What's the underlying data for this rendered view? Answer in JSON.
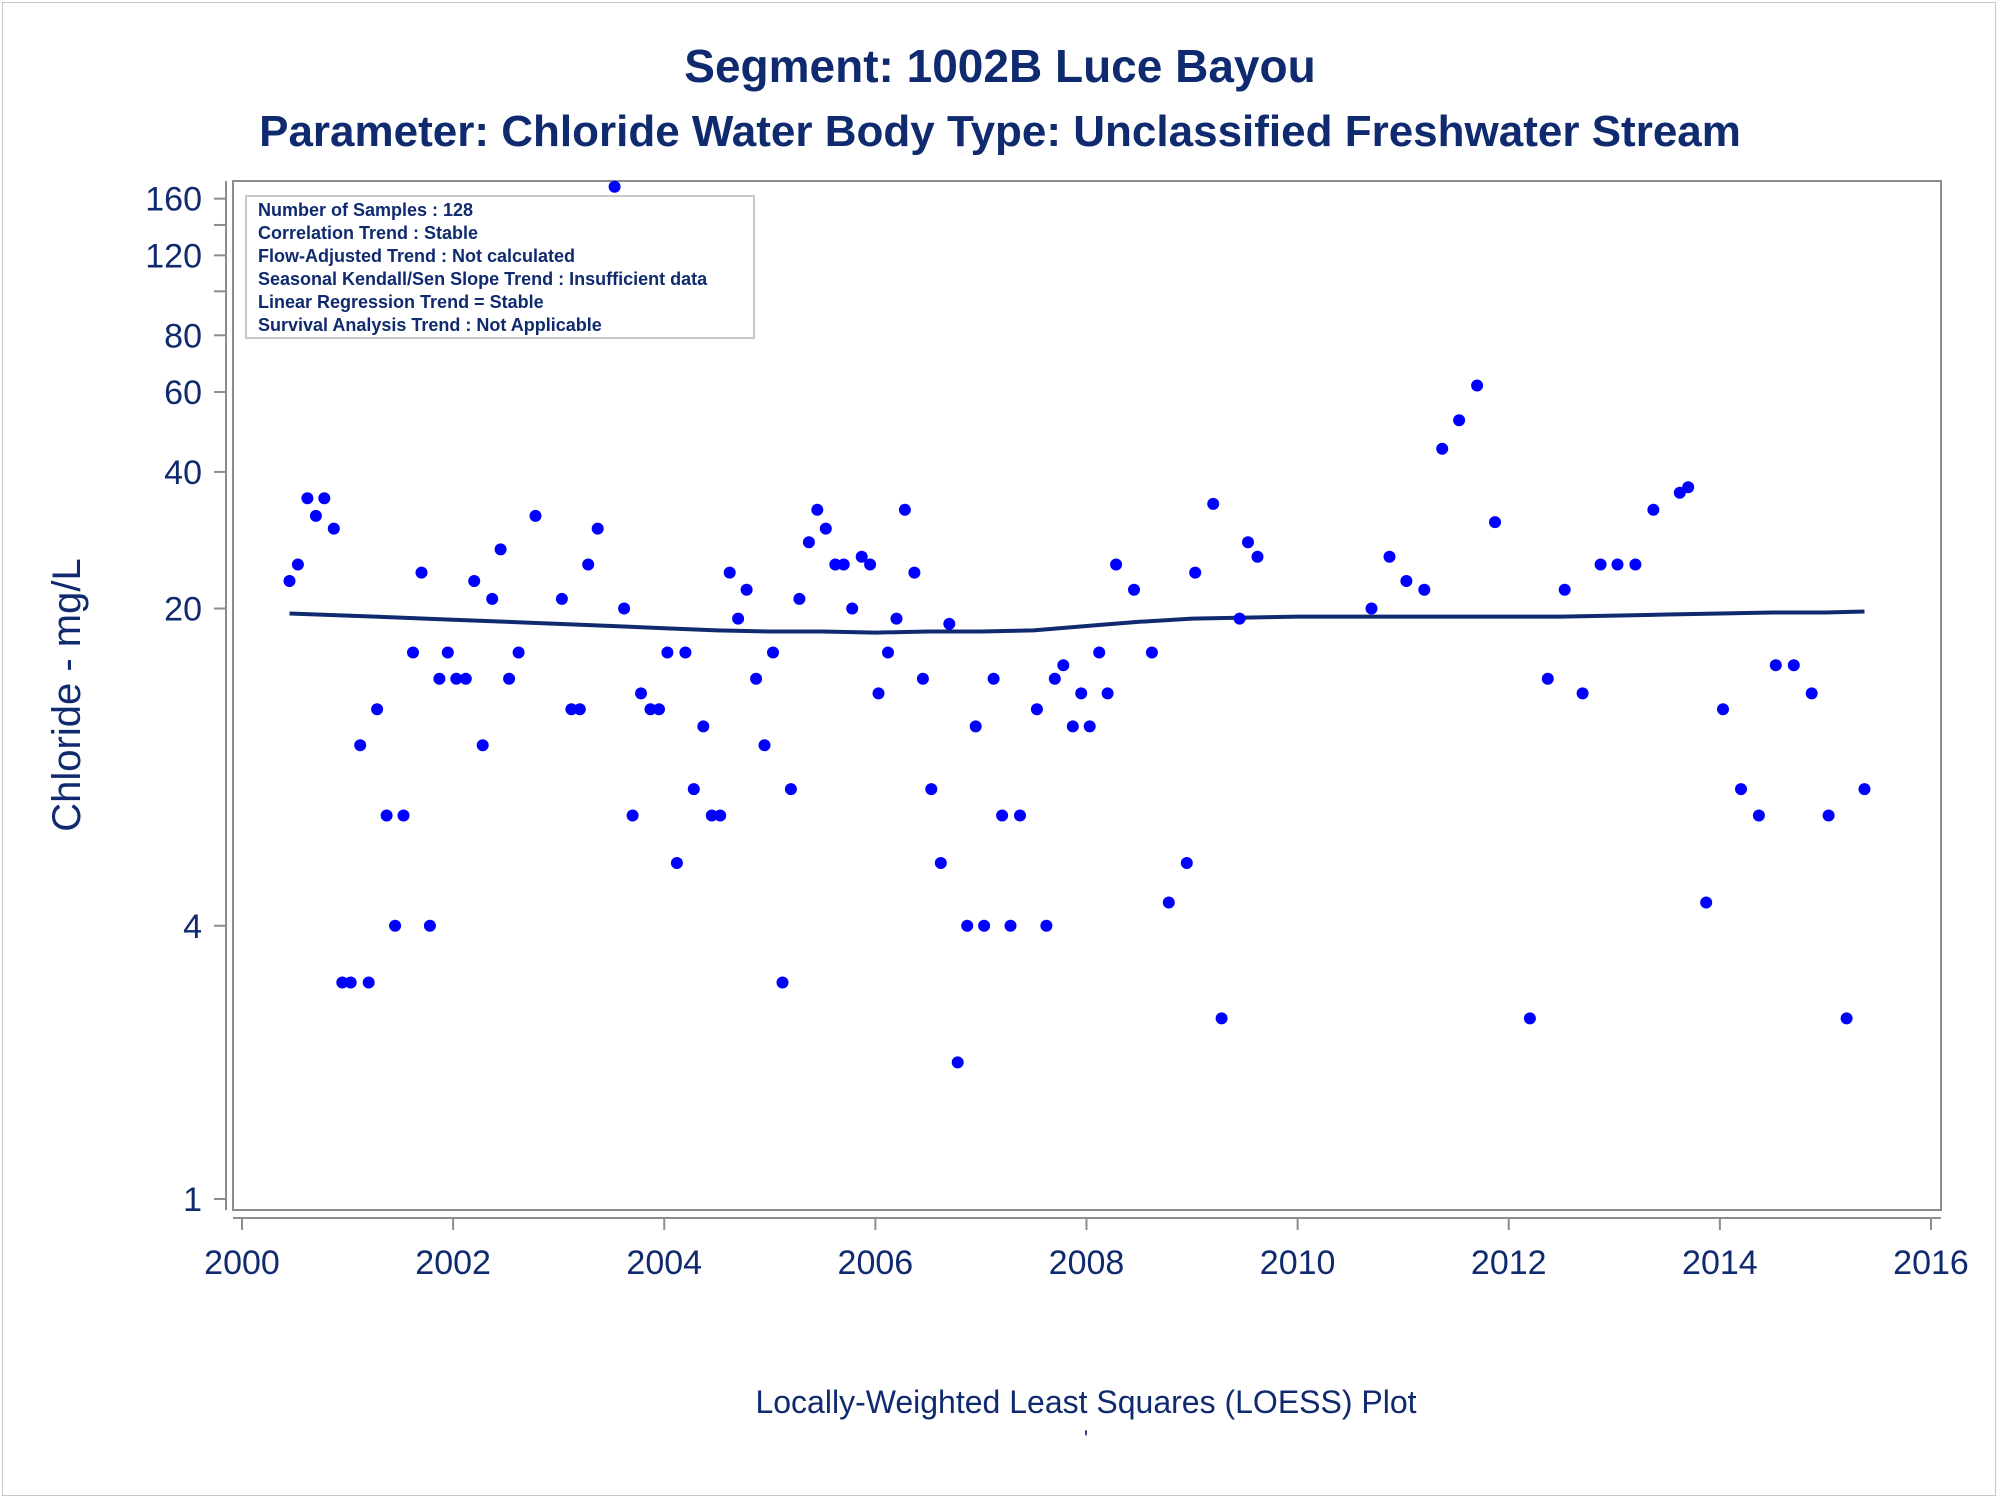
{
  "chart_data": {
    "type": "scatter",
    "title": "Segment: 1002B  Luce Bayou",
    "subtitle": "Parameter: Chloride   Water Body Type: Unclassified Freshwater Stream",
    "ylabel": "Chloride - mg/L",
    "xlabel": "",
    "footnote": "Locally-Weighted Least Squares (LOESS) Plot",
    "footnote_mark": "'",
    "y_scale": "log",
    "ylim": [
      1,
      175
    ],
    "xlim": [
      2000,
      2016
    ],
    "x_ticks": [
      2000,
      2002,
      2004,
      2006,
      2008,
      2010,
      2012,
      2014,
      2016
    ],
    "x_tick_labels": [
      "2000",
      "2002",
      "2004",
      "2006",
      "2008",
      "2010",
      "2012",
      "2014",
      "2016"
    ],
    "y_ticks_labeled": [
      1,
      4,
      20,
      40,
      60,
      80,
      120,
      160
    ],
    "y_tick_labels": [
      "1",
      "4",
      "20",
      "40",
      "60",
      "80",
      "120",
      "160"
    ],
    "y_ticks_minor": [
      100,
      140
    ],
    "grid": false,
    "legend": "none",
    "colors": {
      "points": "#0000ff",
      "loess": "#0f2a6e",
      "text": "#0f2a6e",
      "axis": "#8c8c8c"
    },
    "stats_box": {
      "placement": "top-left",
      "lines": [
        "Number of Samples : 128",
        "Correlation Trend : Stable",
        "Flow-Adjusted Trend : Not calculated",
        "Seasonal Kendall/Sen Slope Trend : Insufficient data",
        "Linear Regression Trend = Stable",
        "Survival Analysis Trend : Not Applicable"
      ]
    },
    "series": [
      {
        "type": "scatter",
        "x": [
          2000.45,
          2000.53,
          2000.62,
          2000.7,
          2000.78,
          2000.87,
          2000.95,
          2001.03,
          2001.12,
          2001.2,
          2001.28,
          2001.37,
          2001.45,
          2001.53,
          2001.62,
          2001.7,
          2001.78,
          2001.87,
          2001.95,
          2002.03,
          2002.12,
          2002.2,
          2002.28,
          2002.37,
          2002.45,
          2002.53,
          2002.62,
          2002.78,
          2003.03,
          2003.12,
          2003.2,
          2003.28,
          2003.37,
          2003.53,
          2003.62,
          2003.7,
          2003.78,
          2003.87,
          2003.95,
          2004.03,
          2004.12,
          2004.2,
          2004.28,
          2004.37,
          2004.45,
          2004.53,
          2004.62,
          2004.7,
          2004.78,
          2004.87,
          2004.95,
          2005.03,
          2005.12,
          2005.2,
          2005.28,
          2005.37,
          2005.45,
          2005.53,
          2005.62,
          2005.7,
          2005.78,
          2005.87,
          2005.95,
          2006.03,
          2006.12,
          2006.2,
          2006.28,
          2006.37,
          2006.45,
          2006.53,
          2006.62,
          2006.7,
          2006.78,
          2006.87,
          2006.95,
          2007.03,
          2007.12,
          2007.2,
          2007.28,
          2007.37,
          2007.53,
          2007.62,
          2007.7,
          2007.78,
          2007.87,
          2007.95,
          2008.03,
          2008.12,
          2008.2,
          2008.28,
          2008.45,
          2008.62,
          2008.78,
          2008.95,
          2009.03,
          2009.2,
          2009.28,
          2009.45,
          2009.53,
          2009.62,
          2010.7,
          2010.87,
          2011.03,
          2011.2,
          2011.37,
          2011.53,
          2011.7,
          2011.87,
          2012.2,
          2012.37,
          2012.53,
          2012.7,
          2012.87,
          2013.03,
          2013.2,
          2013.37,
          2013.62,
          2013.7,
          2013.87,
          2014.03,
          2014.2,
          2014.37,
          2014.53,
          2014.7,
          2014.87,
          2015.03,
          2015.2,
          2015.37
        ],
        "y": [
          23,
          25,
          35,
          32,
          35,
          30,
          3,
          3,
          10,
          3,
          12,
          7,
          4,
          7,
          16,
          24,
          4,
          14,
          16,
          14,
          14,
          23,
          10,
          21,
          27,
          14,
          16,
          32,
          21,
          12,
          12,
          25,
          30,
          170,
          20,
          7,
          13,
          12,
          12,
          16,
          5.5,
          16,
          8,
          11,
          7,
          7,
          24,
          19,
          22,
          14,
          10,
          16,
          3,
          8,
          21,
          28,
          33,
          30,
          25,
          25,
          20,
          26,
          25,
          13,
          16,
          19,
          33,
          24,
          14,
          8,
          5.5,
          18.5,
          2,
          4,
          11,
          4,
          14,
          7,
          4,
          7,
          12,
          4,
          14,
          15,
          11,
          13,
          11,
          16,
          13,
          25,
          22,
          16,
          4.5,
          5.5,
          24,
          34,
          2.5,
          19,
          28,
          26,
          20,
          26,
          23,
          22,
          45,
          52,
          62,
          31,
          2.5,
          14,
          22,
          13,
          25,
          25,
          25,
          33,
          36,
          37,
          4.5,
          12,
          8,
          7,
          15,
          15,
          13,
          7,
          2.5,
          8
        ]
      },
      {
        "type": "line",
        "name": "",
        "x": [
          2000.45,
          2001.0,
          2001.5,
          2002.0,
          2002.5,
          2003.0,
          2003.5,
          2004.0,
          2004.5,
          2005.0,
          2005.5,
          2006.0,
          2006.5,
          2007.0,
          2007.5,
          2008.0,
          2008.5,
          2009.0,
          2009.5,
          2010.0,
          2011.0,
          2012.0,
          2012.5,
          2013.0,
          2013.5,
          2014.0,
          2014.5,
          2015.0,
          2015.37
        ],
        "y": [
          19.5,
          19.3,
          19.1,
          18.9,
          18.7,
          18.5,
          18.3,
          18.1,
          17.9,
          17.8,
          17.8,
          17.7,
          17.8,
          17.8,
          17.9,
          18.3,
          18.7,
          19.0,
          19.1,
          19.2,
          19.2,
          19.2,
          19.2,
          19.3,
          19.4,
          19.5,
          19.6,
          19.6,
          19.7
        ]
      }
    ]
  }
}
